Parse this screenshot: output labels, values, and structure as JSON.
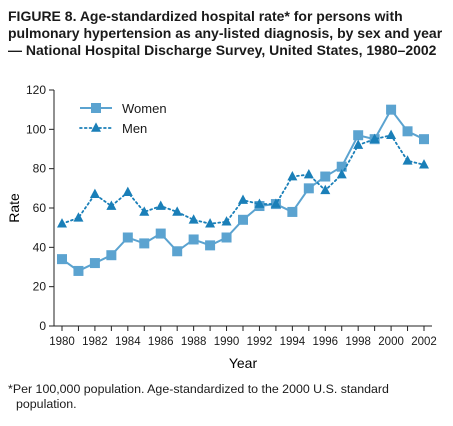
{
  "title": "FIGURE 8. Age-standardized hospital rate* for persons with pulmonary hypertension as any-listed diagnosis, by sex and year — National Hospital Discharge Survey, United States, 1980–2002",
  "footnote": {
    "mark": "*",
    "text": "Per 100,000 population. Age-standardized to the 2000 U.S. standard population."
  },
  "chart_data": {
    "type": "line",
    "xlabel": "Year",
    "ylabel": "Rate",
    "xlim": [
      1980,
      2002
    ],
    "ylim": [
      0,
      120
    ],
    "x": [
      1980,
      1981,
      1982,
      1983,
      1984,
      1985,
      1986,
      1987,
      1988,
      1989,
      1990,
      1991,
      1992,
      1993,
      1994,
      1995,
      1996,
      1997,
      1998,
      1999,
      2000,
      2001,
      2002
    ],
    "x_ticks": [
      1980,
      1981,
      1982,
      1983,
      1984,
      1985,
      1986,
      1987,
      1988,
      1989,
      1990,
      1991,
      1992,
      1993,
      1994,
      1995,
      1996,
      1997,
      1998,
      1999,
      2000,
      2001,
      2002
    ],
    "x_tick_labels": [
      "1980",
      "",
      "1982",
      "",
      "1984",
      "",
      "1986",
      "",
      "1988",
      "",
      "1990",
      "",
      "1992",
      "",
      "1994",
      "",
      "1996",
      "",
      "1998",
      "",
      "2000",
      "",
      "2002"
    ],
    "y_ticks": [
      0,
      20,
      40,
      60,
      80,
      100,
      120
    ],
    "y_tick_labels": [
      "0",
      "20",
      "40",
      "60",
      "80",
      "100",
      "120"
    ],
    "grid": false,
    "legend_position": "top-left",
    "series": [
      {
        "name": "Women",
        "color": "#5ba3d0",
        "marker": "square",
        "line_style": "solid",
        "values": [
          34,
          28,
          32,
          36,
          45,
          42,
          47,
          38,
          44,
          41,
          45,
          54,
          61,
          62,
          58,
          70,
          76,
          81,
          97,
          95,
          110,
          99,
          95
        ]
      },
      {
        "name": "Men",
        "color": "#1a7fb8",
        "marker": "triangle",
        "line_style": "dotted",
        "values": [
          52,
          55,
          67,
          61,
          68,
          58,
          61,
          58,
          54,
          52,
          53,
          64,
          62,
          62,
          76,
          77,
          69,
          77,
          92,
          95,
          97,
          84,
          82
        ]
      }
    ]
  }
}
